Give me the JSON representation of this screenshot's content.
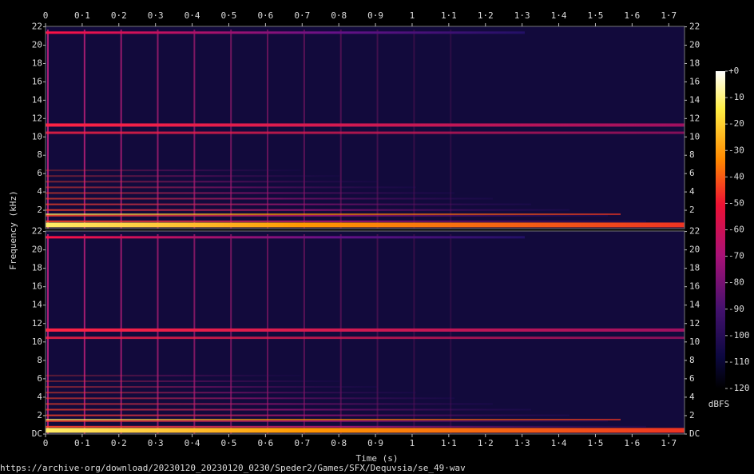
{
  "chart_data": {
    "type": "spectrogram",
    "x_label": "Time (s)",
    "y_label": "Frequency (kHz)",
    "xlim": [
      0,
      1.743
    ],
    "xticks": [
      0,
      {
        "value": 0.1,
        "label": "0·1"
      },
      {
        "value": 0.2,
        "label": "0·2"
      },
      {
        "value": 0.3,
        "label": "0·3"
      },
      {
        "value": 0.4,
        "label": "0·4"
      },
      {
        "value": 0.5,
        "label": "0·5"
      },
      {
        "value": 0.6,
        "label": "0·6"
      },
      {
        "value": 0.7,
        "label": "0·7"
      },
      {
        "value": 0.8,
        "label": "0·8"
      },
      {
        "value": 0.9,
        "label": "0·9"
      },
      1,
      {
        "value": 1.1,
        "label": "1·1"
      },
      {
        "value": 1.2,
        "label": "1·2"
      },
      {
        "value": 1.3,
        "label": "1·3"
      },
      {
        "value": 1.4,
        "label": "1·4"
      },
      {
        "value": 1.5,
        "label": "1·5"
      },
      {
        "value": 1.6,
        "label": "1·6"
      },
      {
        "value": 1.7,
        "label": "1·7"
      }
    ],
    "channels": [
      {
        "ylim": [
          0,
          22.05
        ],
        "yticks": [
          2,
          4,
          6,
          8,
          10,
          12,
          14,
          16,
          18,
          20,
          22
        ]
      },
      {
        "ylim": [
          0,
          22.05
        ],
        "yticks": [
          {
            "value": 0,
            "label": "DC"
          },
          2,
          4,
          6,
          8,
          10,
          12,
          14,
          16,
          18,
          20,
          22
        ]
      }
    ],
    "colorbar": {
      "label": "dBFS",
      "lim": [
        -120,
        0
      ],
      "ticks": [
        {
          "value": 0,
          "label": "+0"
        },
        -10,
        -20,
        -30,
        -40,
        -50,
        -60,
        -70,
        -80,
        -90,
        -100,
        -110,
        -120
      ]
    }
  },
  "footer": "https://archive·org/download/20230120_20230120_0230/Speder2/Games/SFX/Dequvsia/se_49·wav"
}
